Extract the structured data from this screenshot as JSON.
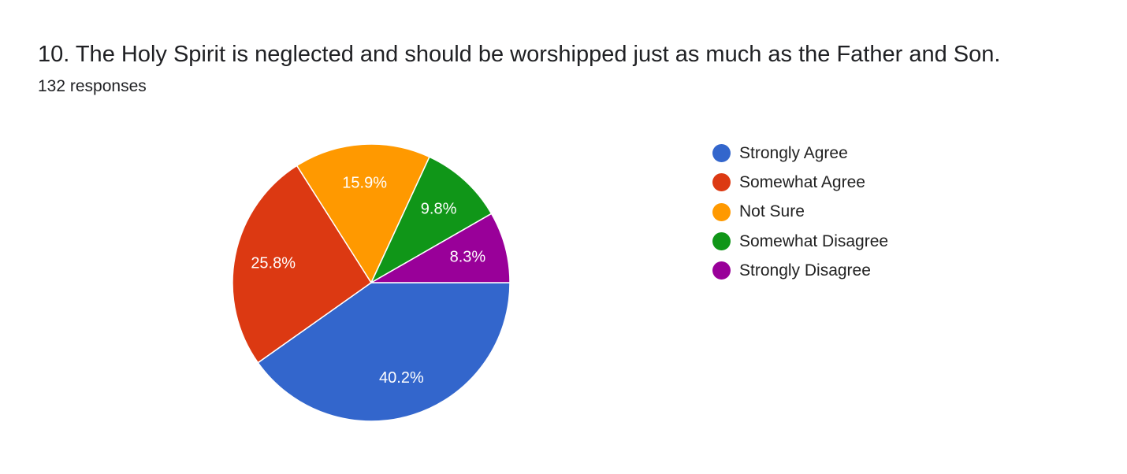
{
  "question": {
    "title": "10. The Holy Spirit is neglected and should be worshipped just as much as the Father and Son.",
    "responses": "132 responses"
  },
  "chart_data": {
    "type": "pie",
    "categories": [
      "Strongly Agree",
      "Somewhat Agree",
      "Not Sure",
      "Somewhat Disagree",
      "Strongly Disagree"
    ],
    "values": [
      40.2,
      25.8,
      15.9,
      9.8,
      8.3
    ],
    "value_labels": [
      "40.2%",
      "25.8%",
      "15.9%",
      "9.8%",
      "8.3%"
    ],
    "colors": [
      "#3366cc",
      "#dc3912",
      "#ff9900",
      "#109618",
      "#990099"
    ],
    "legend_position": "right",
    "start": "3-o'clock, clockwise"
  }
}
